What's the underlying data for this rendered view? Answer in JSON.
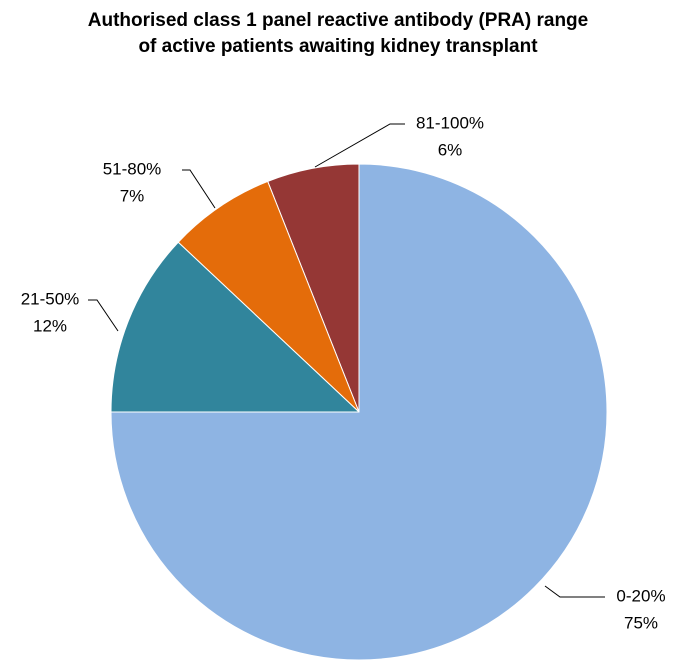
{
  "chart_data": {
    "type": "pie",
    "title": "Authorised class 1 panel reactive antibody (PRA) range of active patients awaiting kidney transplant",
    "categories": [
      "0-20%",
      "21-50%",
      "51-80%",
      "81-100%"
    ],
    "values": [
      75,
      12,
      7,
      6
    ],
    "value_labels": [
      "75%",
      "12%",
      "7%",
      "6%"
    ],
    "colors": [
      "#8eb4e3",
      "#31859c",
      "#e46c0a",
      "#953735"
    ]
  }
}
